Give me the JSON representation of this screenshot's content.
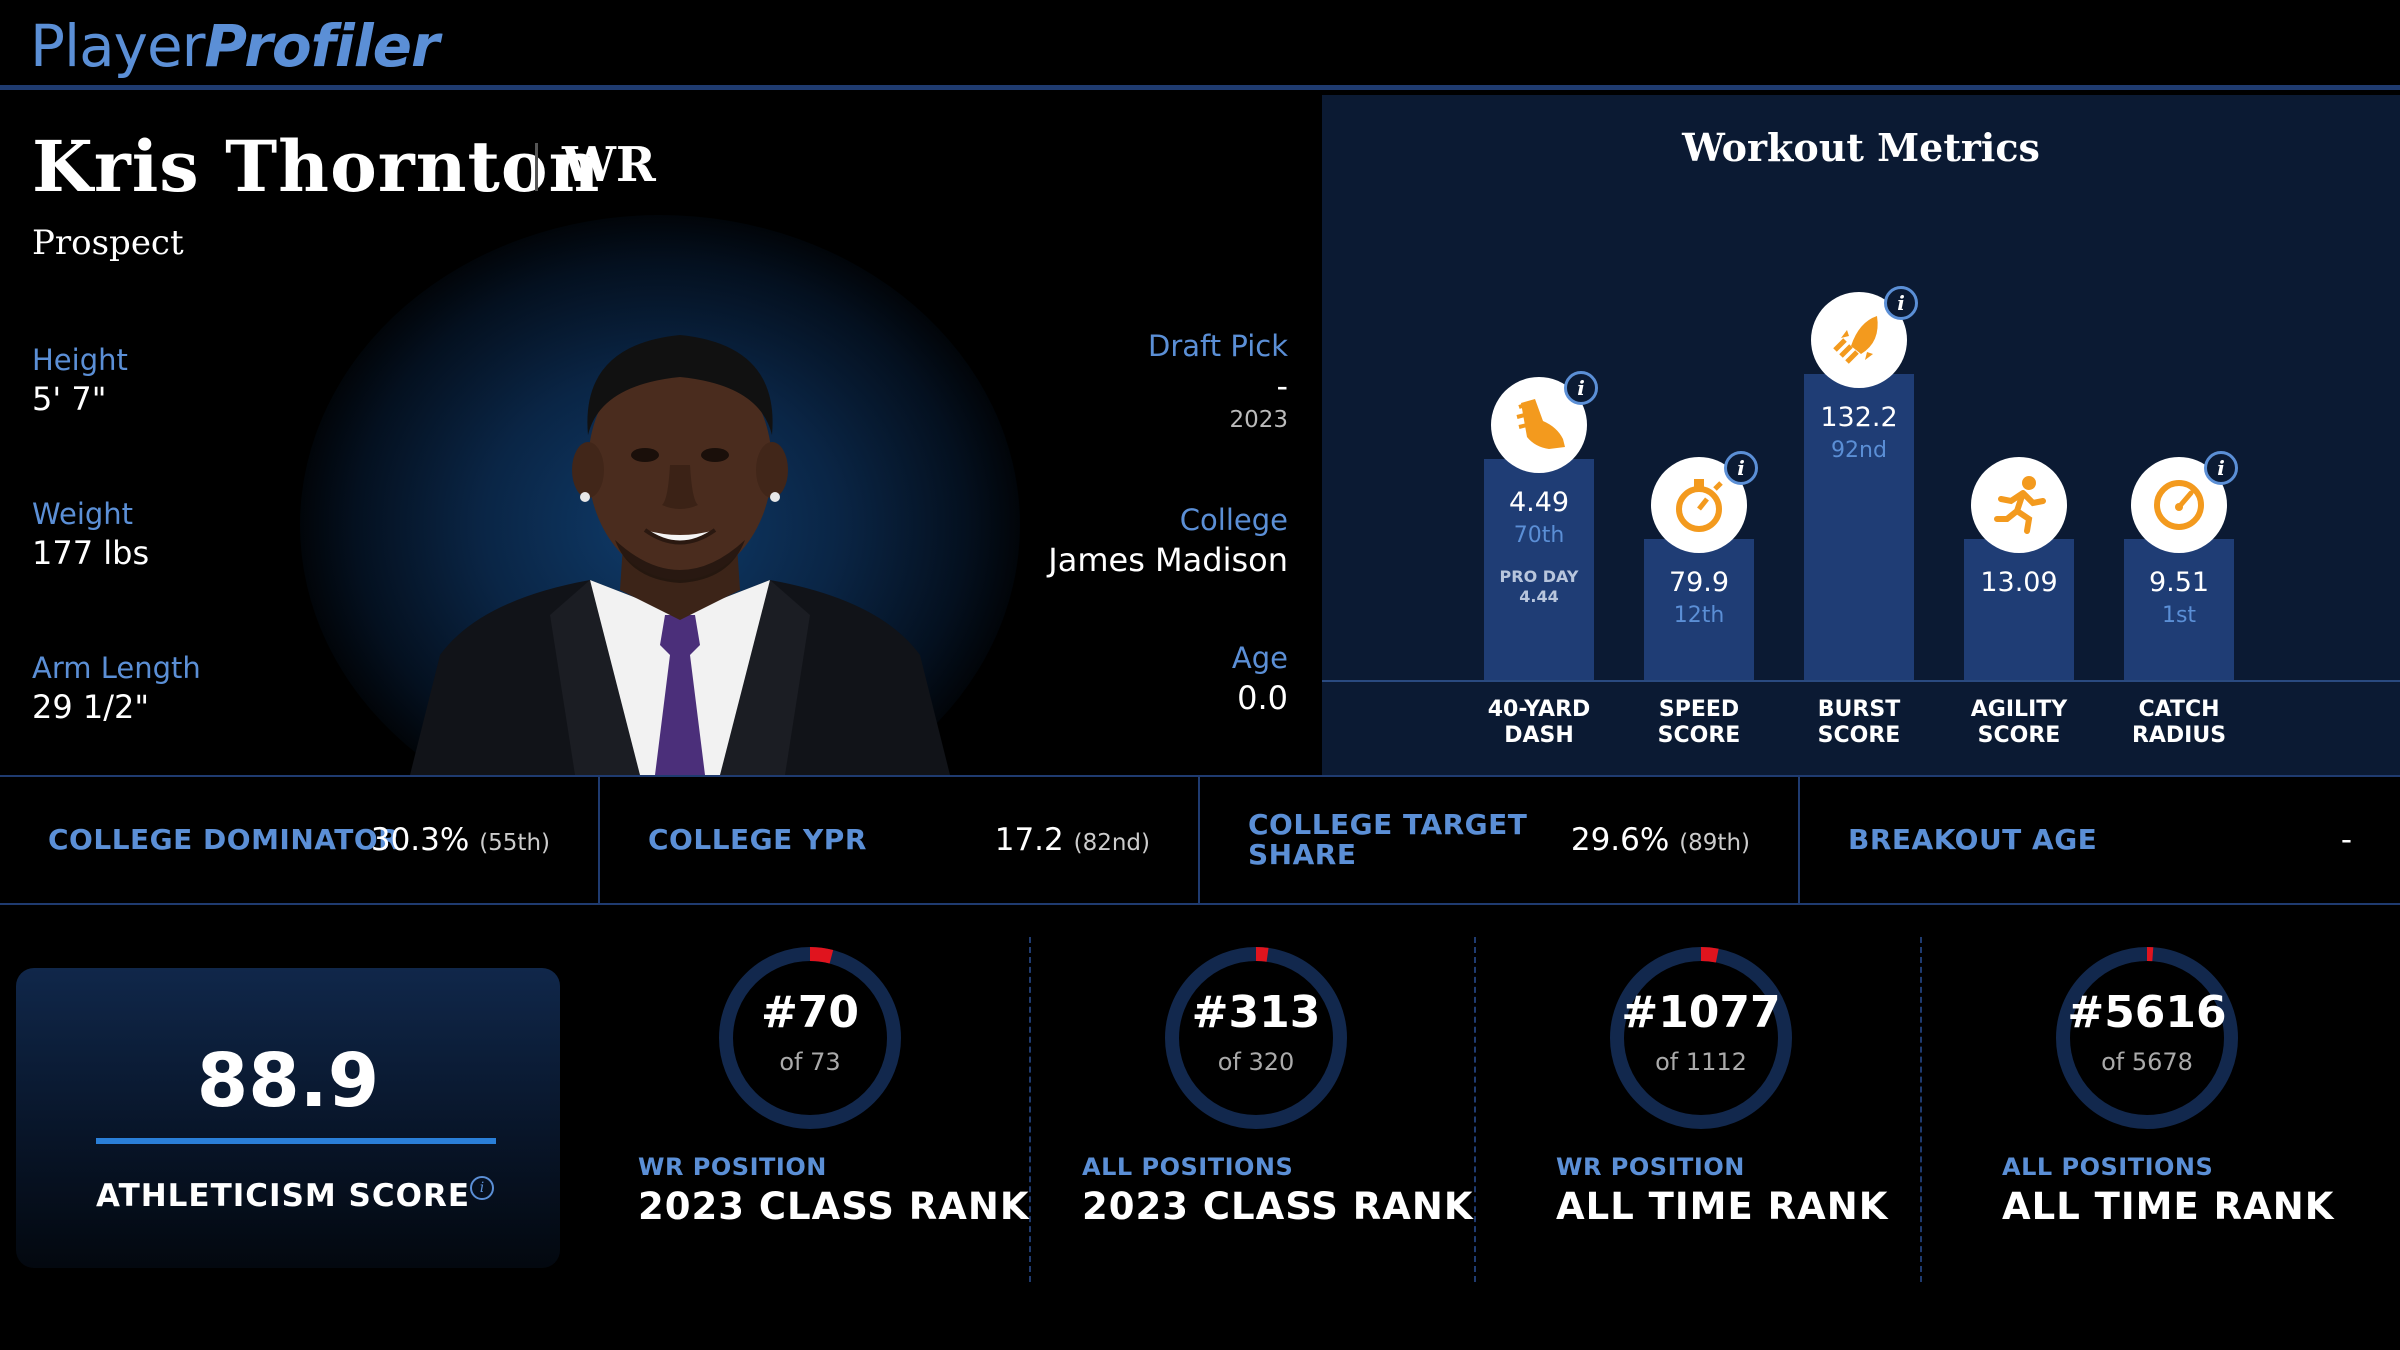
{
  "brand": {
    "part1": "Player",
    "part2": "Profiler"
  },
  "player": {
    "name": "Kris Thornton",
    "position": "WR",
    "status": "Prospect",
    "height_label": "Height",
    "height": "5' 7\"",
    "weight_label": "Weight",
    "weight": "177 lbs",
    "arm_label": "Arm Length",
    "arm": "29 1/2\"",
    "draft_label": "Draft Pick",
    "draft": "-",
    "draft_year": "2023",
    "college_label": "College",
    "college": "James Madison",
    "age_label": "Age",
    "age": "0.0"
  },
  "workout": {
    "title": "Workout Metrics",
    "info": "i",
    "metrics": [
      {
        "label1": "40-YARD",
        "label2": "DASH",
        "value": "4.49",
        "percentile": "70th",
        "note1": "PRO DAY",
        "note2": "4.44",
        "icon": "running-shoe-icon",
        "height_rel": 0.47
      },
      {
        "label1": "SPEED",
        "label2": "SCORE",
        "value": "79.9",
        "percentile": "12th",
        "icon": "stopwatch-icon",
        "height_rel": 0.3
      },
      {
        "label1": "BURST",
        "label2": "SCORE",
        "value": "132.2",
        "percentile": "92nd",
        "icon": "rocket-icon",
        "height_rel": 0.65
      },
      {
        "label1": "AGILITY",
        "label2": "SCORE",
        "value": "13.09",
        "percentile": "",
        "icon": "runner-icon",
        "height_rel": 0.3
      },
      {
        "label1": "CATCH",
        "label2": "RADIUS",
        "value": "9.51",
        "percentile": "1st",
        "icon": "target-gauge-icon",
        "height_rel": 0.3
      }
    ]
  },
  "college_stats": [
    {
      "label": "COLLEGE DOMINATOR",
      "value": "30.3%",
      "pct": "(55th)"
    },
    {
      "label": "COLLEGE YPR",
      "value": "17.2",
      "pct": "(82nd)"
    },
    {
      "label1": "COLLEGE TARGET",
      "label2": "SHARE",
      "value": "29.6%",
      "pct": "(89th)"
    },
    {
      "label": "BREAKOUT AGE",
      "value": "-",
      "pct": ""
    }
  ],
  "athleticism": {
    "value": "88.9",
    "label": "ATHLETICISM SCORE",
    "info": "i"
  },
  "ranks": [
    {
      "rank": "#70",
      "of": "of 73",
      "small": "WR POSITION",
      "big": "2023 CLASS RANK",
      "fraction": 0.041
    },
    {
      "rank": "#313",
      "of": "of 320",
      "small": "ALL POSITIONS",
      "big": "2023 CLASS RANK",
      "fraction": 0.022
    },
    {
      "rank": "#1077",
      "of": "of 1112",
      "small": "WR POSITION",
      "big": "ALL TIME RANK",
      "fraction": 0.031
    },
    {
      "rank": "#5616",
      "of": "of 5678",
      "small": "ALL POSITIONS",
      "big": "ALL TIME RANK",
      "fraction": 0.011
    }
  ],
  "colors": {
    "accent": "#5b8fd6",
    "bar": "#1f3d75",
    "ring_bg": "#12284d",
    "ring_fill": "#e0141e",
    "icon": "#f39a1e"
  }
}
